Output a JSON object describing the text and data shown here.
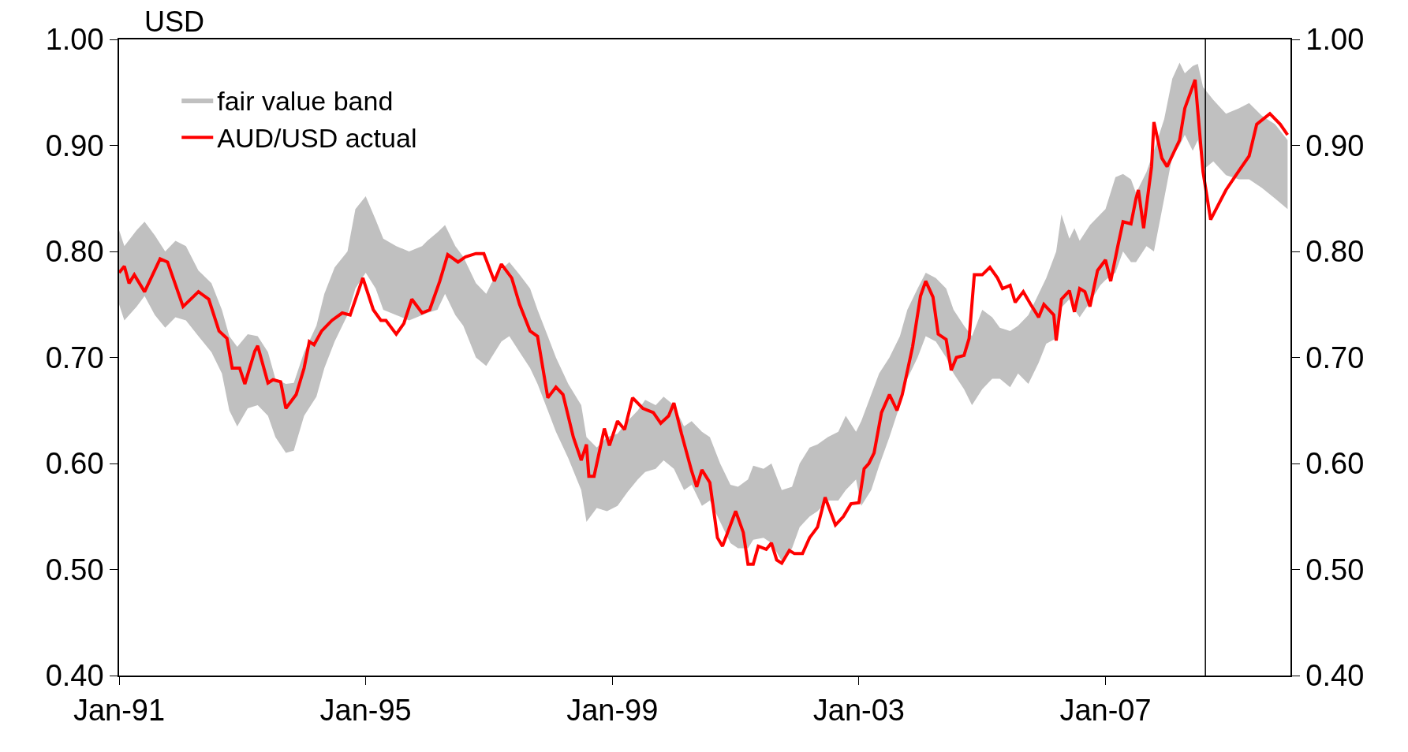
{
  "chart_data": {
    "type": "line",
    "ylabel": "USD",
    "xlim": [
      "1991-01-01",
      "2010-01-01"
    ],
    "xticks": [
      {
        "value": "1991-01-01",
        "label": "Jan-91"
      },
      {
        "value": "1995-01-01",
        "label": "Jan-95"
      },
      {
        "value": "1999-01-01",
        "label": "Jan-99"
      },
      {
        "value": "2003-01-01",
        "label": "Jan-03"
      },
      {
        "value": "2007-01-01",
        "label": "Jan-07"
      }
    ],
    "ylim": [
      0.4,
      1.0
    ],
    "yticks": [
      {
        "value": 0.4,
        "label": "0.40"
      },
      {
        "value": 0.5,
        "label": "0.50"
      },
      {
        "value": 0.6,
        "label": "0.60"
      },
      {
        "value": 0.7,
        "label": "0.70"
      },
      {
        "value": 0.8,
        "label": "0.80"
      },
      {
        "value": 0.9,
        "label": "0.90"
      },
      {
        "value": 1.0,
        "label": "1.00"
      }
    ],
    "y2lim": [
      0.4,
      1.0
    ],
    "y2ticks": [
      {
        "value": 0.4,
        "label": "0.40"
      },
      {
        "value": 0.5,
        "label": "0.50"
      },
      {
        "value": 0.6,
        "label": "0.60"
      },
      {
        "value": 0.7,
        "label": "0.70"
      },
      {
        "value": 0.8,
        "label": "0.80"
      },
      {
        "value": 0.9,
        "label": "0.90"
      },
      {
        "value": 1.0,
        "label": "1.00"
      }
    ],
    "legend": "top left",
    "marker": "none",
    "series": [
      {
        "name": "fair value band",
        "type": "area",
        "color": "#c0c0c0",
        "x": [
          "1991-01-01",
          "1991-02-01",
          "1991-04-15",
          "1991-06-01",
          "1991-08-01",
          "1991-10-01",
          "1991-12-01",
          "1992-02-01",
          "1992-04-15",
          "1992-07-01",
          "1992-09-01",
          "1992-10-15",
          "1992-12-01",
          "1993-02-01",
          "1993-04-01",
          "1993-06-01",
          "1993-07-15",
          "1993-09-15",
          "1993-11-01",
          "1994-01-01",
          "1994-03-15",
          "1994-05-01",
          "1994-07-01",
          "1994-09-15",
          "1994-11-01",
          "1995-01-01",
          "1995-03-01",
          "1995-04-15",
          "1995-07-01",
          "1995-09-15",
          "1995-12-01",
          "1996-01-01",
          "1996-03-01",
          "1996-04-15",
          "1996-06-15",
          "1996-08-01",
          "1996-10-15",
          "1996-12-15",
          "1997-01-15",
          "1997-03-15",
          "1997-05-01",
          "1997-07-01",
          "1997-09-01",
          "1997-10-15",
          "1997-12-15",
          "1998-02-01",
          "1998-04-15",
          "1998-07-01",
          "1998-08-01",
          "1998-10-01",
          "1998-12-01",
          "1999-02-01",
          "1999-04-01",
          "1999-06-01",
          "1999-07-15",
          "1999-09-15",
          "1999-11-01",
          "2000-01-01",
          "2000-03-01",
          "2000-04-15",
          "2000-06-15",
          "2000-08-01",
          "2000-10-01",
          "2000-12-01",
          "2001-01-15",
          "2001-03-15",
          "2001-04-15",
          "2001-06-15",
          "2001-08-01",
          "2001-10-01",
          "2001-12-01",
          "2002-01-15",
          "2002-03-15",
          "2002-05-01",
          "2002-07-01",
          "2002-09-01",
          "2002-10-15",
          "2002-12-15",
          "2003-01-15",
          "2003-03-15",
          "2003-05-01",
          "2003-07-01",
          "2003-09-01",
          "2003-10-15",
          "2003-12-15",
          "2004-02-01",
          "2004-04-01",
          "2004-06-01",
          "2004-07-15",
          "2004-09-15",
          "2004-11-01",
          "2005-01-01",
          "2005-03-01",
          "2005-04-15",
          "2005-06-15",
          "2005-08-01",
          "2005-10-01",
          "2005-12-01",
          "2006-01-15",
          "2006-03-15",
          "2006-04-15",
          "2006-06-01",
          "2006-07-01",
          "2006-08-01",
          "2006-10-01",
          "2006-12-01",
          "2007-01-01",
          "2007-03-01",
          "2007-04-15",
          "2007-06-01",
          "2007-07-01",
          "2007-09-01",
          "2007-10-15",
          "2007-12-15",
          "2008-02-01",
          "2008-03-15",
          "2008-04-15",
          "2008-06-01",
          "2008-07-01",
          "2008-08-01",
          "2008-10-01",
          "2008-12-15",
          "2009-03-01",
          "2009-05-01",
          "2009-07-15",
          "2009-10-01",
          "2009-12-15"
        ],
        "values": [
          null,
          null,
          null,
          null,
          null,
          null,
          null,
          null,
          null,
          null,
          null,
          null,
          null,
          null,
          null,
          null,
          null,
          null,
          null,
          null,
          null,
          null,
          null,
          null,
          null,
          null,
          null,
          null,
          null,
          null,
          null,
          null,
          null,
          null,
          null,
          null,
          null,
          null,
          null,
          null,
          null,
          null,
          null,
          null,
          null,
          null,
          null,
          null,
          null,
          null,
          null,
          null,
          null,
          null,
          null,
          null,
          null,
          null,
          null,
          null,
          null,
          null,
          null,
          null,
          null,
          null,
          null,
          null,
          null,
          null,
          null,
          null,
          null,
          null,
          null,
          null,
          null,
          null,
          null,
          null,
          null,
          null,
          null,
          null,
          null,
          null,
          null,
          null,
          null,
          null,
          null,
          null,
          null,
          null,
          null,
          null,
          null,
          null,
          null,
          null,
          null,
          null,
          null,
          null,
          null,
          null,
          null,
          null,
          null,
          null,
          null,
          null,
          null,
          null,
          null,
          null,
          null,
          null,
          null,
          null,
          null,
          null,
          null,
          null,
          null,
          null,
          null
        ],
        "upper": [
          0.82,
          0.805,
          0.82,
          0.828,
          0.815,
          0.8,
          0.81,
          0.805,
          0.782,
          0.77,
          0.745,
          0.72,
          0.71,
          0.722,
          0.72,
          0.705,
          0.68,
          0.675,
          0.676,
          0.705,
          0.73,
          0.76,
          0.785,
          0.8,
          0.84,
          0.852,
          0.83,
          0.812,
          0.805,
          0.8,
          0.805,
          0.81,
          0.818,
          0.825,
          0.805,
          0.795,
          0.77,
          0.76,
          0.77,
          0.783,
          0.79,
          0.778,
          0.765,
          0.745,
          0.72,
          0.7,
          0.675,
          0.655,
          0.625,
          0.615,
          0.625,
          0.628,
          0.64,
          0.65,
          0.66,
          0.655,
          0.663,
          0.655,
          0.635,
          0.64,
          0.63,
          0.625,
          0.6,
          0.58,
          0.578,
          0.585,
          0.598,
          0.595,
          0.6,
          0.575,
          0.578,
          0.6,
          0.615,
          0.618,
          0.625,
          0.63,
          0.645,
          0.63,
          0.64,
          0.665,
          0.685,
          0.7,
          0.72,
          0.745,
          0.765,
          0.78,
          0.775,
          0.765,
          0.745,
          0.73,
          0.72,
          0.745,
          0.738,
          0.728,
          0.725,
          0.73,
          0.74,
          0.76,
          0.775,
          0.8,
          0.835,
          0.812,
          0.822,
          0.81,
          0.825,
          0.835,
          0.84,
          0.87,
          0.873,
          0.868,
          0.855,
          0.875,
          0.895,
          0.925,
          0.963,
          0.978,
          0.968,
          0.975,
          0.977,
          0.955,
          0.943,
          0.93,
          0.935,
          0.94,
          0.928,
          0.92,
          0.905
        ],
        "lower": [
          0.75,
          0.735,
          0.748,
          0.758,
          0.74,
          0.728,
          0.738,
          0.735,
          0.72,
          0.705,
          0.685,
          0.65,
          0.635,
          0.652,
          0.655,
          0.645,
          0.625,
          0.61,
          0.612,
          0.645,
          0.663,
          0.69,
          0.715,
          0.74,
          0.765,
          0.78,
          0.765,
          0.745,
          0.74,
          0.735,
          0.74,
          0.742,
          0.745,
          0.76,
          0.74,
          0.73,
          0.7,
          0.692,
          0.7,
          0.715,
          0.72,
          0.705,
          0.69,
          0.675,
          0.65,
          0.63,
          0.605,
          0.575,
          0.545,
          0.558,
          0.555,
          0.56,
          0.573,
          0.585,
          0.592,
          0.595,
          0.603,
          0.595,
          0.575,
          0.58,
          0.56,
          0.565,
          0.545,
          0.525,
          0.52,
          0.52,
          0.528,
          0.53,
          0.525,
          0.508,
          0.52,
          0.54,
          0.55,
          0.555,
          0.565,
          0.565,
          0.575,
          0.585,
          0.56,
          0.575,
          0.598,
          0.625,
          0.655,
          0.68,
          0.7,
          0.72,
          0.715,
          0.7,
          0.685,
          0.67,
          0.655,
          0.67,
          0.68,
          0.68,
          0.672,
          0.685,
          0.675,
          0.695,
          0.713,
          0.718,
          0.747,
          0.755,
          0.745,
          0.738,
          0.752,
          0.768,
          0.773,
          0.78,
          0.8,
          0.79,
          0.79,
          0.805,
          0.8,
          0.85,
          0.89,
          0.9,
          0.91,
          0.895,
          0.905,
          0.877,
          0.885,
          0.872,
          0.868,
          0.868,
          0.86,
          0.85,
          0.84
        ]
      },
      {
        "name": "AUD/USD actual",
        "color": "#ff0000",
        "line_style": "solid",
        "x": [
          "1991-01-01",
          "1991-02-01",
          "1991-03-01",
          "1991-04-01",
          "1991-06-01",
          "1991-09-01",
          "1991-10-15",
          "1992-01-15",
          "1992-04-15",
          "1992-06-15",
          "1992-08-15",
          "1992-10-01",
          "1992-11-01",
          "1992-12-15",
          "1993-01-15",
          "1993-03-15",
          "1993-04-01",
          "1993-06-01",
          "1993-07-01",
          "1993-08-15",
          "1993-09-15",
          "1993-11-15",
          "1994-01-01",
          "1994-02-01",
          "1994-03-01",
          "1994-04-15",
          "1994-06-15",
          "1994-08-15",
          "1994-10-01",
          "1994-12-15",
          "1995-02-15",
          "1995-04-01",
          "1995-05-01",
          "1995-07-01",
          "1995-08-15",
          "1995-10-01",
          "1995-12-01",
          "1996-01-15",
          "1996-03-15",
          "1996-05-01",
          "1996-07-01",
          "1996-08-15",
          "1996-10-15",
          "1996-12-01",
          "1997-02-01",
          "1997-03-15",
          "1997-05-15",
          "1997-07-01",
          "1997-09-01",
          "1997-10-15",
          "1997-12-15",
          "1998-02-01",
          "1998-03-15",
          "1998-05-15",
          "1998-07-01",
          "1998-08-01",
          "1998-08-15",
          "1998-09-15",
          "1998-11-15",
          "1998-12-15",
          "1999-02-01",
          "1999-03-15",
          "1999-05-01",
          "1999-07-01",
          "1999-09-01",
          "1999-10-15",
          "1999-12-01",
          "2000-01-01",
          "2000-02-15",
          "2000-04-15",
          "2000-05-15",
          "2000-06-15",
          "2000-08-01",
          "2000-09-15",
          "2000-10-15",
          "2000-12-15",
          "2001-01-01",
          "2001-02-15",
          "2001-03-15",
          "2001-04-15",
          "2001-05-15",
          "2001-07-01",
          "2001-08-01",
          "2001-09-01",
          "2001-10-01",
          "2001-11-15",
          "2001-12-15",
          "2002-02-01",
          "2002-03-15",
          "2002-05-01",
          "2002-06-15",
          "2002-08-15",
          "2002-10-01",
          "2002-11-15",
          "2003-01-01",
          "2003-02-01",
          "2003-03-01",
          "2003-04-01",
          "2003-05-15",
          "2003-07-01",
          "2003-08-15",
          "2003-09-15",
          "2003-11-15",
          "2004-01-01",
          "2004-02-01",
          "2004-03-15",
          "2004-04-15",
          "2004-06-01",
          "2004-07-01",
          "2004-08-01",
          "2004-09-15",
          "2004-10-15",
          "2004-11-15",
          "2005-01-01",
          "2005-02-15",
          "2005-04-01",
          "2005-05-01",
          "2005-06-15",
          "2005-07-15",
          "2005-09-01",
          "2005-10-15",
          "2005-12-01",
          "2006-01-01",
          "2006-03-01",
          "2006-03-15",
          "2006-04-15",
          "2006-06-01",
          "2006-07-01",
          "2006-08-01",
          "2006-09-01",
          "2006-10-01",
          "2006-11-15",
          "2007-01-01",
          "2007-02-01",
          "2007-03-15",
          "2007-04-15",
          "2007-06-01",
          "2007-07-01",
          "2007-07-15",
          "2007-08-15",
          "2007-10-01",
          "2007-10-15",
          "2007-12-01",
          "2008-01-01",
          "2008-03-15",
          "2008-04-15",
          "2008-06-15",
          "2008-08-01",
          "2008-09-15",
          "2008-12-15",
          "2009-03-01",
          "2009-05-01",
          "2009-06-15",
          "2009-09-01",
          "2009-11-01",
          "2009-12-15"
        ],
        "values": [
          0.78,
          0.786,
          0.77,
          0.778,
          0.762,
          0.793,
          0.79,
          0.748,
          0.762,
          0.755,
          0.725,
          0.718,
          0.69,
          0.69,
          0.675,
          0.706,
          0.711,
          0.676,
          0.679,
          0.677,
          0.652,
          0.665,
          0.69,
          0.715,
          0.712,
          0.725,
          0.735,
          0.742,
          0.74,
          0.775,
          0.745,
          0.735,
          0.735,
          0.722,
          0.732,
          0.755,
          0.742,
          0.745,
          0.772,
          0.797,
          0.79,
          0.795,
          0.798,
          0.798,
          0.772,
          0.788,
          0.775,
          0.75,
          0.725,
          0.72,
          0.662,
          0.672,
          0.665,
          0.625,
          0.603,
          0.618,
          0.588,
          0.588,
          0.633,
          0.617,
          0.64,
          0.632,
          0.662,
          0.652,
          0.648,
          0.638,
          0.645,
          0.657,
          0.628,
          0.593,
          0.578,
          0.594,
          0.582,
          0.53,
          0.522,
          0.548,
          0.555,
          0.535,
          0.505,
          0.505,
          0.522,
          0.519,
          0.525,
          0.509,
          0.506,
          0.518,
          0.515,
          0.515,
          0.53,
          0.54,
          0.568,
          0.542,
          0.55,
          0.562,
          0.563,
          0.595,
          0.6,
          0.61,
          0.648,
          0.665,
          0.65,
          0.665,
          0.71,
          0.758,
          0.772,
          0.757,
          0.722,
          0.717,
          0.688,
          0.7,
          0.702,
          0.718,
          0.778,
          0.778,
          0.785,
          0.775,
          0.765,
          0.768,
          0.752,
          0.762,
          0.75,
          0.738,
          0.75,
          0.74,
          0.716,
          0.755,
          0.763,
          0.743,
          0.765,
          0.762,
          0.748,
          0.782,
          0.792,
          0.772,
          0.805,
          0.828,
          0.826,
          0.85,
          0.858,
          0.822,
          0.88,
          0.922,
          0.888,
          0.88,
          0.905,
          0.935,
          0.962,
          0.875,
          0.83,
          0.858,
          0.876,
          0.89,
          0.92,
          0.93,
          0.92,
          0.91
        ]
      }
    ],
    "ref_lines": [
      {
        "axis": "x",
        "value": "2008-08-15",
        "color": "#000000",
        "line_style": "solid"
      }
    ]
  }
}
